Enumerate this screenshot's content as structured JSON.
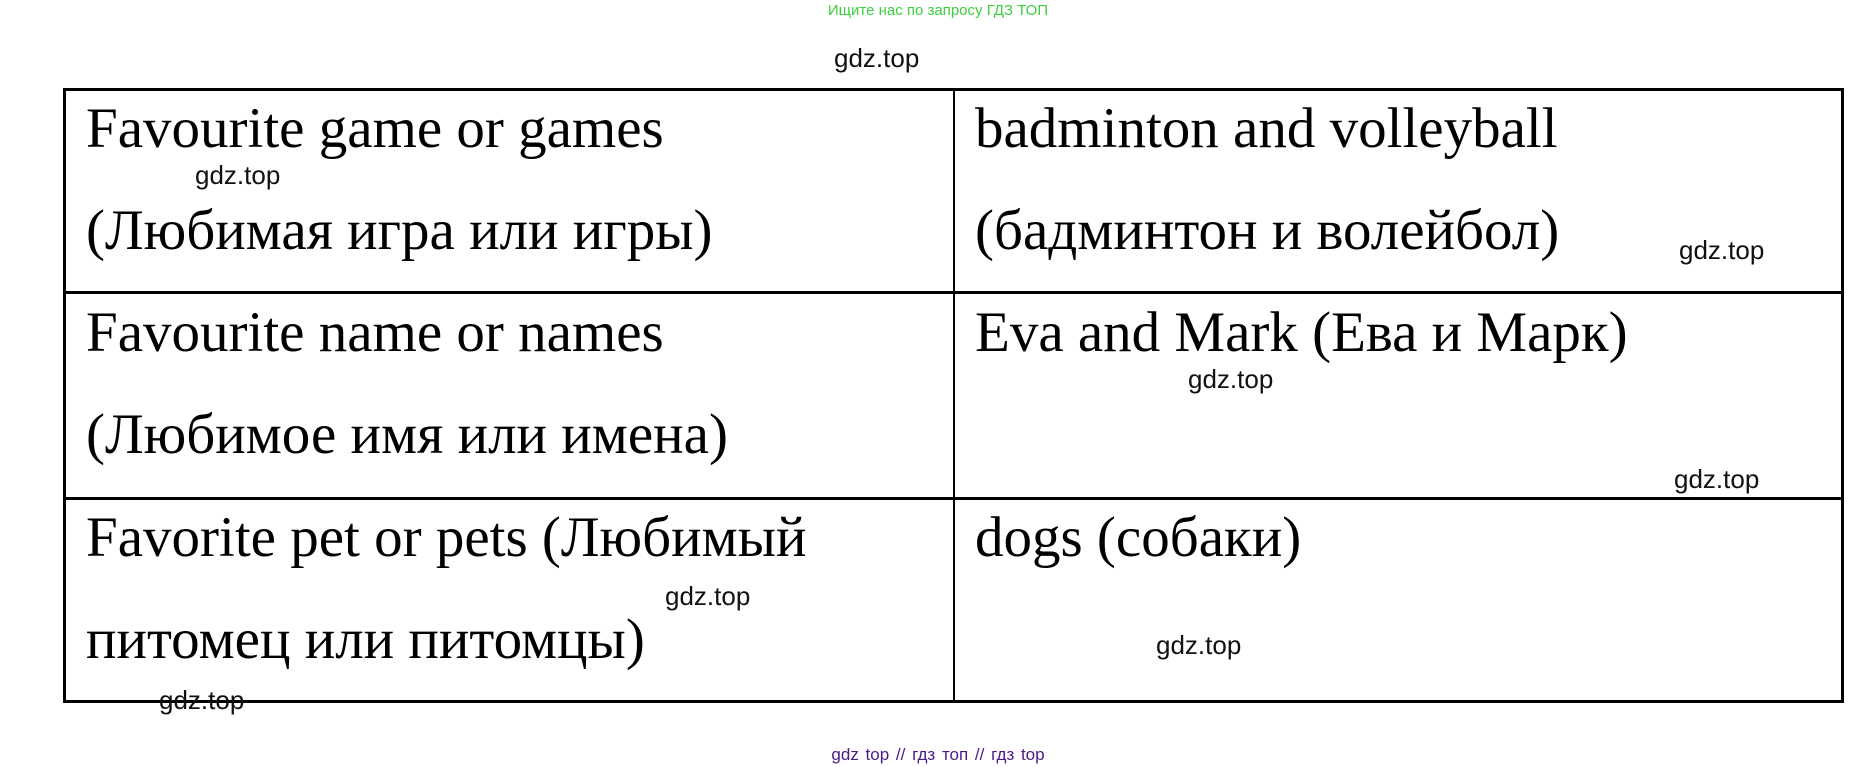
{
  "header": {
    "promo": "Ищите нас по запросу ГДЗ ТОП",
    "watermark": "gdz.top"
  },
  "table": {
    "rows": [
      {
        "label_en": "Favourite game or games",
        "label_ru": "(Любимая игра или игры)",
        "value_en": "badminton and volleyball",
        "value_ru": "(бадминтон и волейбол)"
      },
      {
        "label_en": "Favourite name or names",
        "label_ru": "(Любимое имя или имена)",
        "value_en": "Eva and Mark (Ева и Марк)",
        "value_ru": ""
      },
      {
        "label_en": "Favorite pet or pets (Любимый",
        "label_ru": "питомец или питомцы)",
        "value_en": "dogs (собаки)",
        "value_ru": ""
      }
    ]
  },
  "watermark_text": "gdz.top",
  "footer": {
    "text": "gdz top  //  гдз топ  //  гдз top"
  },
  "colors": {
    "promo": "#3fcf3f",
    "footer": "#4b1a86"
  }
}
